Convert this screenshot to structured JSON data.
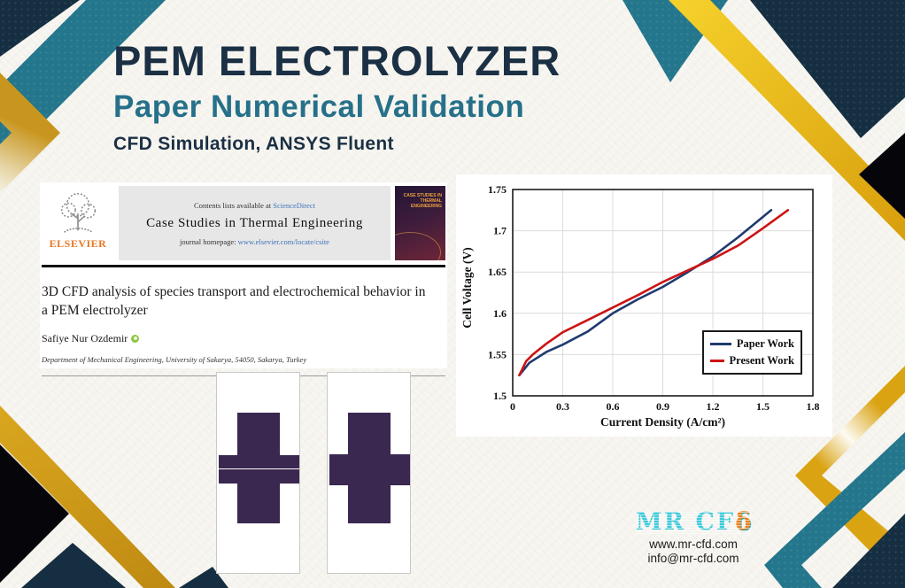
{
  "header": {
    "title": "PEM ELECTROLYZER",
    "subtitle": "Paper Numerical Validation",
    "tagline": "CFD Simulation, ANSYS Fluent"
  },
  "paper": {
    "contents_line": "Contents lists available at",
    "sciencedirect": "ScienceDirect",
    "journal_name": "Case Studies in Thermal Engineering",
    "homepage_label": "journal homepage:",
    "homepage_url": "www.elsevier.com/locate/csite",
    "publisher": "ELSEVIER",
    "cover_title": "CASE STUDIES IN THERMAL ENGINEERING",
    "title": "3D CFD analysis of species transport and electrochemical behavior in a PEM electrolyzer",
    "author": "Safiye Nur Ozdemir",
    "affiliation": "Department of Mechanical Engineering, University of Sakarya, 54050, Sakarya, Turkey"
  },
  "chart_data": {
    "type": "line",
    "title": "",
    "xlabel": "Current Density (A/cm²)",
    "ylabel": "Cell Voltage (V)",
    "xlim": [
      0,
      1.8
    ],
    "ylim": [
      1.5,
      1.75
    ],
    "xticks": [
      0,
      0.3,
      0.6,
      0.9,
      1.2,
      1.5,
      1.8
    ],
    "yticks": [
      1.5,
      1.55,
      1.6,
      1.65,
      1.7,
      1.75
    ],
    "grid": true,
    "legend_position": "lower right",
    "series": [
      {
        "name": "Paper Work",
        "color": "#1f3a6e",
        "x": [
          0.04,
          0.1,
          0.2,
          0.3,
          0.45,
          0.6,
          0.75,
          0.9,
          1.05,
          1.2,
          1.35,
          1.55
        ],
        "y": [
          1.525,
          1.54,
          1.553,
          1.562,
          1.578,
          1.6,
          1.617,
          1.632,
          1.65,
          1.669,
          1.692,
          1.725
        ]
      },
      {
        "name": "Present Work",
        "color": "#cc1414",
        "x": [
          0.04,
          0.08,
          0.12,
          0.2,
          0.3,
          0.45,
          0.6,
          0.75,
          0.9,
          1.05,
          1.2,
          1.35,
          1.5,
          1.65
        ],
        "y": [
          1.525,
          1.542,
          1.55,
          1.563,
          1.577,
          1.592,
          1.607,
          1.622,
          1.638,
          1.652,
          1.666,
          1.682,
          1.703,
          1.725
        ]
      }
    ]
  },
  "footer": {
    "logo_text": "MR CF",
    "logo_delta": "δ",
    "website": "www.mr-cfd.com",
    "email": "info@mr-cfd.com"
  },
  "colors": {
    "navy": "#152e42",
    "teal": "#24768c",
    "gold": "#d3a11c",
    "headline_navy": "#1b3044",
    "headline_teal": "#26708a",
    "logo_cyan": "#3cc9dc",
    "paper_link_blue": "#3c72b8",
    "elsevier_orange": "#e87722"
  }
}
